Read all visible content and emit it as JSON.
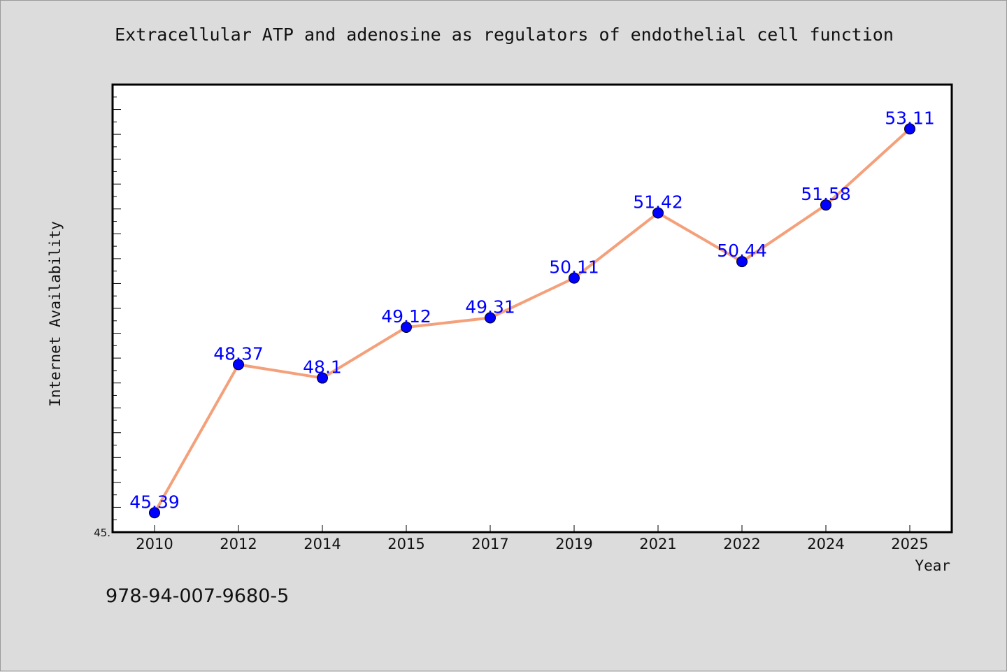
{
  "chart_data": {
    "type": "line",
    "title": "Extracellular ATP and adenosine as regulators of endothelial cell function",
    "xlabel": "Year",
    "ylabel": "Internet Availability",
    "categories": [
      "2010",
      "2012",
      "2014",
      "2015",
      "2017",
      "2019",
      "2021",
      "2022",
      "2024",
      "2025"
    ],
    "series": [
      {
        "values": [
          45.39,
          48.37,
          48.1,
          49.12,
          49.31,
          50.11,
          51.42,
          50.44,
          51.58,
          53.11
        ],
        "labels": [
          "45.39",
          "48.37",
          "48.1",
          "49.12",
          "49.31",
          "50.11",
          "51.42",
          "50.44",
          "51.58",
          "53.11"
        ]
      }
    ],
    "ylim": [
      45,
      54
    ],
    "y_tick_labels": [
      "45."
    ],
    "grid": false,
    "line_color": "#f4a07a",
    "marker_color": "#0000ff",
    "label_color": "#0000ff"
  },
  "footer_text": "978-94-007-9680-5"
}
